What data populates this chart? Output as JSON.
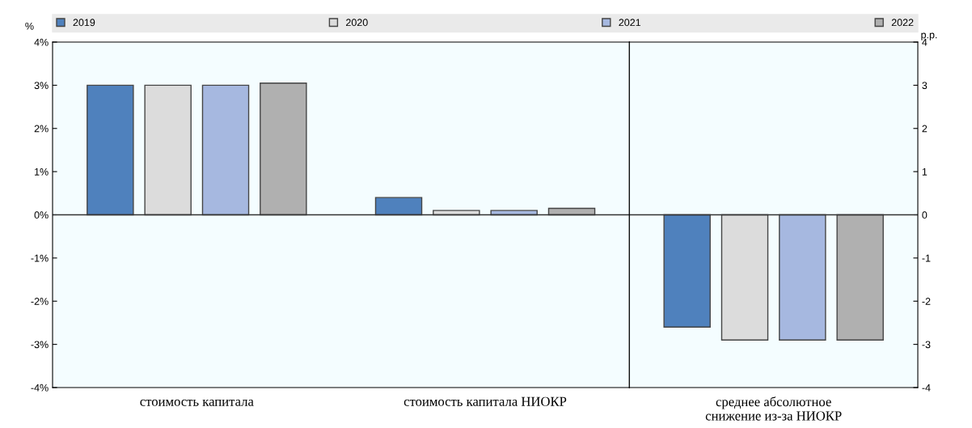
{
  "chart_data": [
    {
      "type": "bar",
      "ylabel": "%",
      "categories": [
        "стоимость капитала",
        "стоимость капитала НИОКР"
      ],
      "series": [
        {
          "name": "2019",
          "color": "#4f81bd",
          "values": [
            3.0,
            0.4
          ]
        },
        {
          "name": "2020",
          "color": "#dcdcdc",
          "values": [
            3.0,
            0.1
          ]
        },
        {
          "name": "2021",
          "color": "#a6b8e0",
          "values": [
            3.0,
            0.1
          ]
        },
        {
          "name": "2022",
          "color": "#b0b0b0",
          "values": [
            3.05,
            0.15
          ]
        }
      ],
      "ylim": [
        -4,
        4
      ],
      "yticks": [
        {
          "value": -4,
          "label": "-4%"
        },
        {
          "value": -3,
          "label": "-3%"
        },
        {
          "value": -2,
          "label": "-2%"
        },
        {
          "value": -1,
          "label": "-1%"
        },
        {
          "value": 0,
          "label": "0%"
        },
        {
          "value": 1,
          "label": "1%"
        },
        {
          "value": 2,
          "label": "2%"
        },
        {
          "value": 3,
          "label": "3%"
        },
        {
          "value": 4,
          "label": "4%"
        }
      ],
      "legend": "top"
    },
    {
      "type": "bar",
      "ylabel": "p.p.",
      "categories": [
        "среднее абсолютное\nснижение из-за НИОКР"
      ],
      "series": [
        {
          "color": "#4f81bd",
          "values": [
            -2.6
          ]
        },
        {
          "color": "#dcdcdc",
          "values": [
            -2.9
          ]
        },
        {
          "color": "#a6b8e0",
          "values": [
            -2.9
          ]
        },
        {
          "color": "#b0b0b0",
          "values": [
            -2.9
          ]
        }
      ],
      "ylim": [
        -4,
        4
      ],
      "yticks": [
        -4,
        -3,
        -2,
        -1,
        0,
        1,
        2,
        3,
        4
      ]
    }
  ]
}
